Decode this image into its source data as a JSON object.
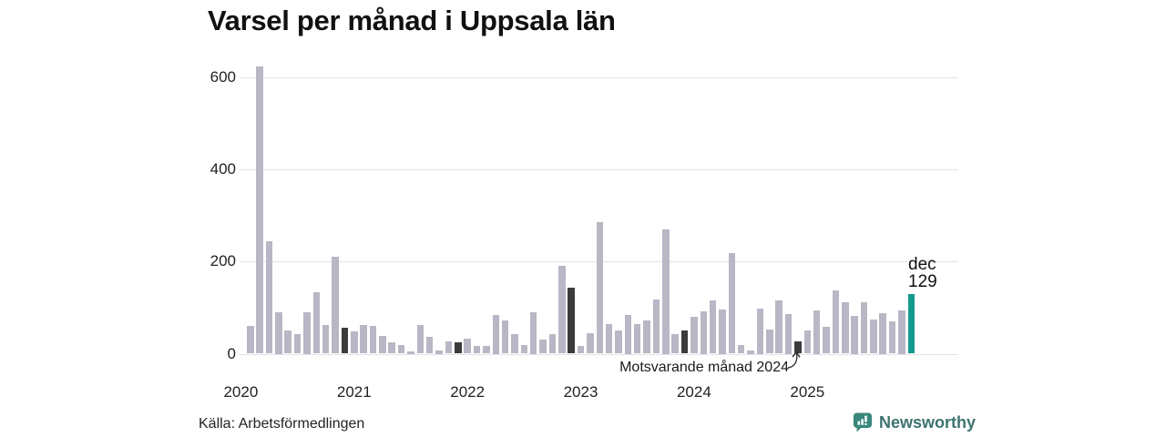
{
  "title": "Varsel per månad i Uppsala län",
  "highlight_callout": {
    "month_label": "dec",
    "value_label": "129"
  },
  "annotation": {
    "label": "Motsvarande månad 2024"
  },
  "footer": {
    "source": "Källa: Arbetsförmedlingen",
    "brand": "Newsworthy"
  },
  "colors": {
    "bar_default": "#b9b6c5",
    "bar_comparison": "#3b3b3b",
    "bar_highlight": "#14998c",
    "gridline": "#e3e3e6",
    "axis_text": "#222222",
    "brand_icon": "#3a877c",
    "brand_text": "#3d736d"
  },
  "chart_data": {
    "type": "bar",
    "title": "Varsel per månad i Uppsala län",
    "xlabel": "",
    "ylabel": "",
    "ylim": [
      0,
      650
    ],
    "yticks": [
      0,
      200,
      400,
      600
    ],
    "year_ticks": [
      "2020",
      "2021",
      "2022",
      "2023",
      "2024",
      "2025"
    ],
    "grid": "horizontal",
    "legend": "none",
    "categories": [
      "2020-01",
      "2020-02",
      "2020-03",
      "2020-04",
      "2020-05",
      "2020-06",
      "2020-07",
      "2020-08",
      "2020-09",
      "2020-10",
      "2020-11",
      "2020-12",
      "2021-01",
      "2021-02",
      "2021-03",
      "2021-04",
      "2021-05",
      "2021-06",
      "2021-07",
      "2021-08",
      "2021-09",
      "2021-10",
      "2021-11",
      "2021-12",
      "2022-01",
      "2022-02",
      "2022-03",
      "2022-04",
      "2022-05",
      "2022-06",
      "2022-07",
      "2022-08",
      "2022-09",
      "2022-10",
      "2022-11",
      "2022-12",
      "2023-01",
      "2023-02",
      "2023-03",
      "2023-04",
      "2023-05",
      "2023-06",
      "2023-07",
      "2023-08",
      "2023-09",
      "2023-10",
      "2023-11",
      "2023-12",
      "2024-01",
      "2024-02",
      "2024-03",
      "2024-04",
      "2024-05",
      "2024-06",
      "2024-07",
      "2024-08",
      "2024-09",
      "2024-10",
      "2024-11",
      "2024-12",
      "2025-01",
      "2025-02",
      "2025-03",
      "2025-04",
      "2025-05",
      "2025-06",
      "2025-07",
      "2025-08",
      "2025-09",
      "2025-10",
      "2025-11",
      "2025-12"
    ],
    "values": [
      0,
      60,
      625,
      245,
      90,
      50,
      42,
      90,
      133,
      63,
      210,
      57,
      49,
      62,
      60,
      38,
      25,
      19,
      6,
      62,
      36,
      8,
      26,
      24,
      32,
      17,
      16,
      85,
      72,
      42,
      18,
      90,
      30,
      42,
      191,
      143,
      17,
      44,
      286,
      65,
      50,
      84,
      65,
      72,
      118,
      270,
      42,
      50,
      80,
      92,
      116,
      96,
      218,
      19,
      8,
      98,
      53,
      116,
      86,
      26,
      50,
      94,
      59,
      138,
      112,
      83,
      112,
      75,
      88,
      71,
      95,
      129
    ],
    "comparison_month_indices": [
      11,
      23,
      35,
      47,
      59
    ],
    "comparison_note": "Motsvarande månad 2024",
    "highlight_index": 71,
    "highlight_label": {
      "month": "dec",
      "value": 129
    }
  }
}
